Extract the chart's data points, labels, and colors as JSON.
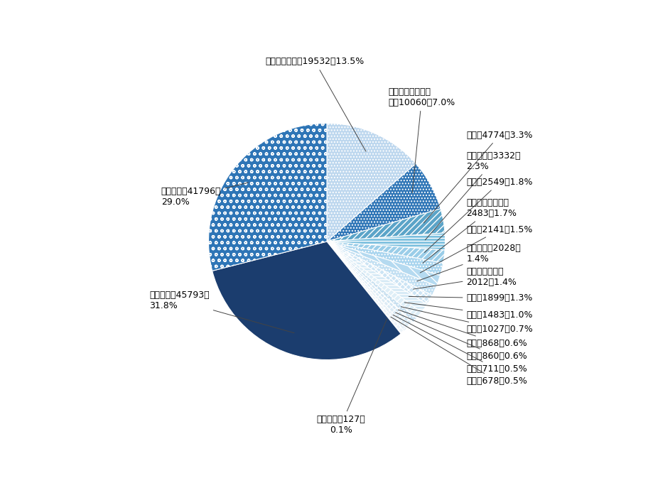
{
  "categories": [
    "交通运输",
    "市政工程",
    "城镇综合开发",
    "生态建设和环境保护",
    "旅游",
    "水利建设",
    "教育",
    "保障性安居工程",
    "其他",
    "医疗卫生",
    "政府基础设施",
    "文化",
    "林业",
    "体育",
    "科技",
    "农业",
    "养老",
    "能源",
    "社会保障"
  ],
  "values": [
    45793,
    41796,
    19532,
    10060,
    4774,
    3332,
    2549,
    2483,
    2141,
    2028,
    2012,
    1899,
    1483,
    1027,
    868,
    860,
    711,
    678,
    127
  ],
  "percentages": [
    "31.8%",
    "29.0%",
    "13.5%",
    "7.0%",
    "3.3%",
    "2.3%",
    "1.8%",
    "1.7%",
    "1.5%",
    "1.4%",
    "1.4%",
    "1.3%",
    "1.0%",
    "0.7%",
    "0.6%",
    "0.6%",
    "0.5%",
    "0.5%",
    "0.1%"
  ],
  "colors": [
    "#1F3864",
    "#2E75B6",
    "#BDD7EE",
    "#2877B8",
    "#5BA3CC",
    "#7ABEDE",
    "#9ACDE8",
    "#A8D5EE",
    "#B5DAF0",
    "#C1DFF2",
    "#CCE4F4",
    "#D5E9F5",
    "#DEEEF7",
    "#C8E0F0",
    "#D2E6F3",
    "#DCEbF5",
    "#E6F0F7",
    "#EEF4F9",
    "#F5F8FB"
  ],
  "base_color": "#2E75B6",
  "startangle": 90,
  "figure_width": 9.2,
  "figure_height": 6.8,
  "label_fontsize": 9.0,
  "label_color": "#000000"
}
